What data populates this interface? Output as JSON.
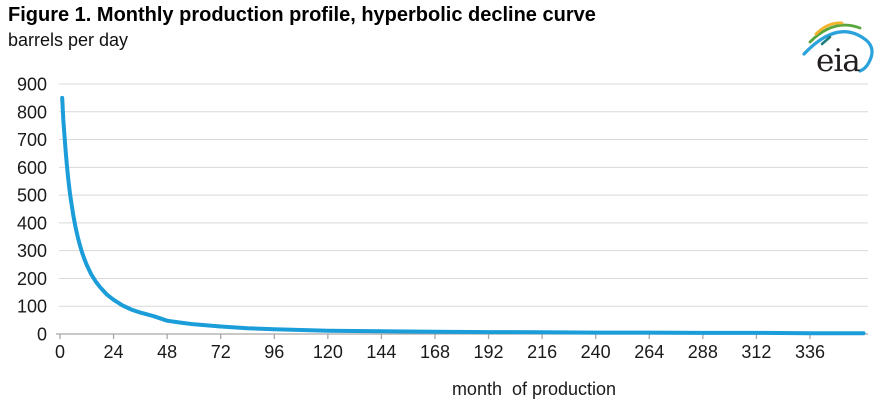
{
  "logo": {
    "text": "eia",
    "arc_yellow": "#F2B32D",
    "arc_green": "#59A63F",
    "arc_blue": "#2BA2DB",
    "accent_teal": "#1E7E7E"
  },
  "styles": {
    "line_color": "#1B9DD9",
    "grid_color": "#d9d9d9",
    "axis_color": "#a6a6a6",
    "tick_label_color": "#1a1a1a",
    "title_color": "#000000",
    "line_width": 4
  },
  "chart_data": {
    "type": "line",
    "title": "Figure 1. Monthly production profile, hyperbolic decline curve",
    "subtitle": "barrels per day",
    "xlabel": "month  of production",
    "ylabel": "barrels per day",
    "xlim": [
      0,
      362
    ],
    "ylim": [
      0,
      900
    ],
    "x_ticks": [
      0,
      24,
      48,
      72,
      96,
      120,
      144,
      168,
      192,
      216,
      240,
      264,
      288,
      312,
      336
    ],
    "y_ticks": [
      0,
      100,
      200,
      300,
      400,
      500,
      600,
      700,
      800,
      900
    ],
    "grid": "horizontal",
    "legend_position": "none",
    "series": [
      {
        "name": "hyperbolic decline curve",
        "color": "#1B9DD9",
        "x": [
          1,
          1.5,
          2,
          2.5,
          3,
          3.5,
          4,
          4.5,
          5,
          6,
          7,
          8,
          9,
          10,
          11,
          12,
          14,
          16,
          18,
          21,
          24,
          28,
          32,
          36,
          42,
          48,
          54,
          60,
          72,
          84,
          96,
          120,
          144,
          168,
          192,
          216,
          240,
          264,
          288,
          312,
          336,
          360
        ],
        "y": [
          850,
          772,
          713,
          661,
          615,
          574,
          538,
          505,
          476,
          425,
          383,
          347,
          317,
          291,
          268,
          248,
          215,
          189,
          168,
          142,
          123,
          103,
          88,
          77,
          64,
          48,
          41,
          35,
          27,
          21,
          17,
          12,
          10,
          8,
          7,
          6,
          5,
          5,
          4,
          4,
          3,
          3
        ]
      }
    ]
  }
}
